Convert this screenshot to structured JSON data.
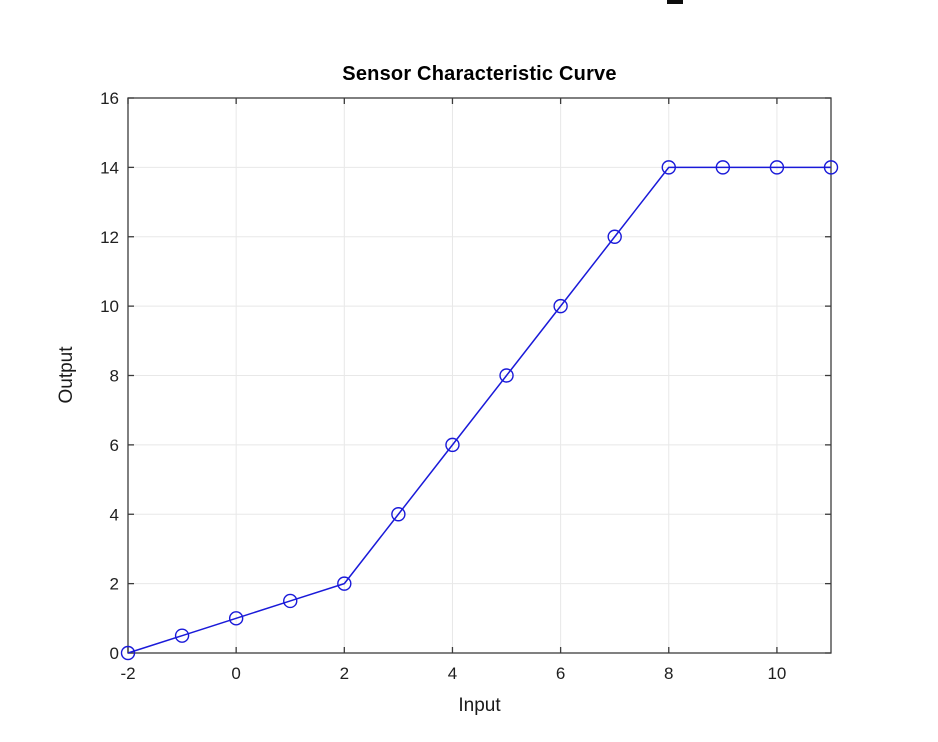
{
  "chart_data": {
    "type": "line",
    "title": "Sensor Characteristic Curve",
    "xlabel": "Input",
    "ylabel": "Output",
    "x": [
      -2,
      -1,
      0,
      1,
      2,
      3,
      4,
      5,
      6,
      7,
      8,
      9,
      10,
      11
    ],
    "y": [
      0,
      0.5,
      1,
      1.5,
      2,
      4,
      6,
      8,
      10,
      12,
      14,
      14,
      14,
      14
    ],
    "xlim": [
      -2,
      11
    ],
    "ylim": [
      0,
      16
    ],
    "xticks": [
      -2,
      0,
      2,
      4,
      6,
      8,
      10
    ],
    "yticks": [
      0,
      2,
      4,
      6,
      8,
      10,
      12,
      14,
      16
    ],
    "xtick_labels": [
      "-2",
      "0",
      "2",
      "4",
      "6",
      "8",
      "10"
    ],
    "ytick_labels": [
      "0",
      "2",
      "4",
      "6",
      "8",
      "10",
      "12",
      "14",
      "16"
    ],
    "grid": true,
    "legend": null,
    "marker": "circle-open",
    "line_color": "#1a1ad9",
    "grid_color": "#e8e8e8",
    "axis_color": "#3b3b3b",
    "tick_label_color": "#202020",
    "background": "#ffffff"
  }
}
